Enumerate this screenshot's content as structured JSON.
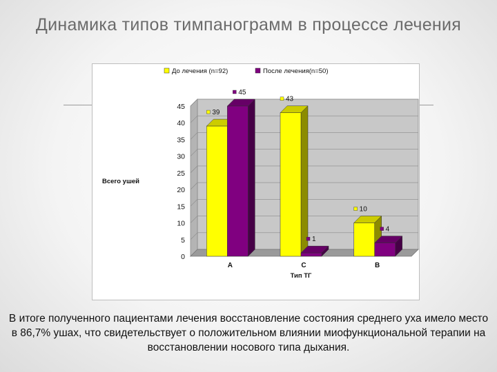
{
  "slide": {
    "title": "Динамика типов тимпанограмм в процессе лечения",
    "caption": "В итоге полученного пациентами лечения восстановление состояния среднего уха имело место в 86,7% ушах, что свидетельствует о положительном влиянии миофункциональной терапии на восстановлении носового типа дыхания."
  },
  "chart_data": {
    "type": "bar",
    "style": "3d-clustered-column",
    "categories": [
      "A",
      "C",
      "B"
    ],
    "series": [
      {
        "name": "До лечения  (n=92)",
        "color": "#ffff00",
        "values": [
          39,
          43,
          10
        ]
      },
      {
        "name": "После лечения(n=50)",
        "color": "#800080",
        "values": [
          45,
          1,
          4
        ]
      }
    ],
    "xlabel": "Тип ТГ",
    "ylabel": "Всего ушей",
    "ylim": [
      0,
      45
    ],
    "yticks": [
      0,
      5,
      10,
      15,
      20,
      25,
      30,
      35,
      40,
      45
    ],
    "grid": true,
    "legend": "top",
    "data_labels": true
  }
}
